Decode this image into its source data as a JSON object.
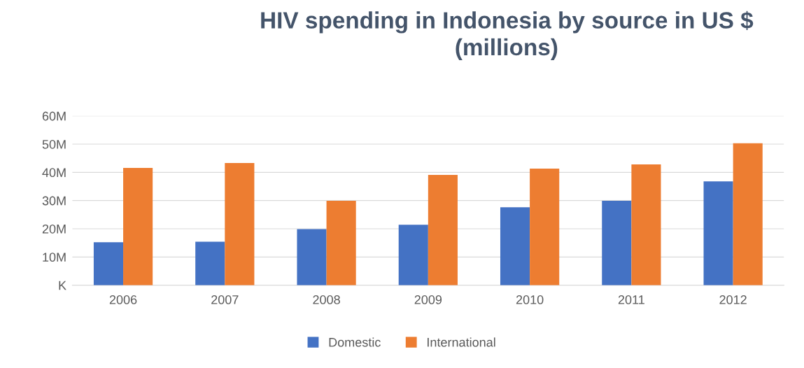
{
  "chart_data": {
    "type": "bar",
    "title": "HIV spending in Indonesia by source in US $\n(millions)",
    "categories": [
      "2006",
      "2007",
      "2008",
      "2009",
      "2010",
      "2011",
      "2012"
    ],
    "series": [
      {
        "name": "Domestic",
        "color": "#4472c4",
        "values": [
          15.2,
          15.4,
          19.9,
          21.4,
          27.6,
          29.9,
          36.8
        ]
      },
      {
        "name": "International",
        "color": "#ed7d31",
        "values": [
          41.6,
          43.3,
          29.9,
          39.1,
          41.3,
          42.8,
          50.3
        ]
      }
    ],
    "ylim": [
      0,
      60
    ],
    "yticks": [
      {
        "value": 0,
        "label": "K"
      },
      {
        "value": 10,
        "label": "10M"
      },
      {
        "value": 20,
        "label": "20M"
      },
      {
        "value": 30,
        "label": "30M"
      },
      {
        "value": 40,
        "label": "40M"
      },
      {
        "value": 50,
        "label": "50M"
      },
      {
        "value": 60,
        "label": "60M"
      }
    ],
    "grid": "y",
    "legend": "bottom"
  }
}
